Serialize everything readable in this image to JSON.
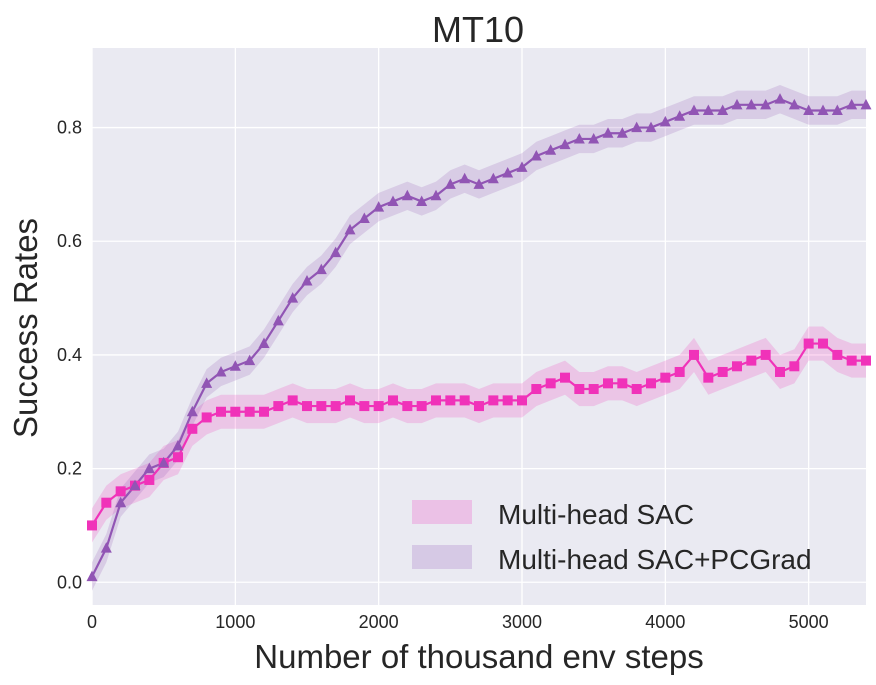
{
  "chart_data": {
    "type": "line",
    "title": "MT10",
    "xlabel": "Number of thousand env steps",
    "ylabel": "Success Rates",
    "xlim": [
      0,
      5400
    ],
    "ylim": [
      -0.04,
      0.94
    ],
    "xticks": [
      0,
      1000,
      2000,
      3000,
      4000,
      5000
    ],
    "yticks": [
      0.0,
      0.2,
      0.4,
      0.6,
      0.8
    ],
    "xtick_labels": [
      "0",
      "1000",
      "2000",
      "3000",
      "4000",
      "5000"
    ],
    "ytick_labels": [
      "0.0",
      "0.2",
      "0.4",
      "0.6",
      "0.8"
    ],
    "grid": true,
    "legend_position": "bottom-right",
    "colors": {
      "background": "#eaeaf2",
      "grid": "#ffffff",
      "sac": "#f032b9",
      "pcgrad": "#9155b4"
    },
    "series": [
      {
        "name": "Multi-head SAC",
        "marker": "square",
        "band": 0.03,
        "x": [
          0,
          100,
          200,
          300,
          400,
          500,
          600,
          700,
          800,
          900,
          1000,
          1100,
          1200,
          1300,
          1400,
          1500,
          1600,
          1700,
          1800,
          1900,
          2000,
          2100,
          2200,
          2300,
          2400,
          2500,
          2600,
          2700,
          2800,
          2900,
          3000,
          3100,
          3200,
          3300,
          3400,
          3500,
          3600,
          3700,
          3800,
          3900,
          4000,
          4100,
          4200,
          4300,
          4400,
          4500,
          4600,
          4700,
          4800,
          4900,
          5000,
          5100,
          5200,
          5300,
          5400
        ],
        "values": [
          0.1,
          0.14,
          0.16,
          0.17,
          0.18,
          0.21,
          0.22,
          0.27,
          0.29,
          0.3,
          0.3,
          0.3,
          0.3,
          0.31,
          0.32,
          0.31,
          0.31,
          0.31,
          0.32,
          0.31,
          0.31,
          0.32,
          0.31,
          0.31,
          0.32,
          0.32,
          0.32,
          0.31,
          0.32,
          0.32,
          0.32,
          0.34,
          0.35,
          0.36,
          0.34,
          0.34,
          0.35,
          0.35,
          0.34,
          0.35,
          0.36,
          0.37,
          0.4,
          0.36,
          0.37,
          0.38,
          0.39,
          0.4,
          0.37,
          0.38,
          0.42,
          0.42,
          0.4,
          0.39,
          0.39
        ]
      },
      {
        "name": "Multi-head SAC+PCGrad",
        "marker": "triangle",
        "band": 0.025,
        "x": [
          0,
          100,
          200,
          300,
          400,
          500,
          600,
          700,
          800,
          900,
          1000,
          1100,
          1200,
          1300,
          1400,
          1500,
          1600,
          1700,
          1800,
          1900,
          2000,
          2100,
          2200,
          2300,
          2400,
          2500,
          2600,
          2700,
          2800,
          2900,
          3000,
          3100,
          3200,
          3300,
          3400,
          3500,
          3600,
          3700,
          3800,
          3900,
          4000,
          4100,
          4200,
          4300,
          4400,
          4500,
          4600,
          4700,
          4800,
          4900,
          5000,
          5100,
          5200,
          5300,
          5400
        ],
        "values": [
          0.01,
          0.06,
          0.14,
          0.17,
          0.2,
          0.21,
          0.24,
          0.3,
          0.35,
          0.37,
          0.38,
          0.39,
          0.42,
          0.46,
          0.5,
          0.53,
          0.55,
          0.58,
          0.62,
          0.64,
          0.66,
          0.67,
          0.68,
          0.67,
          0.68,
          0.7,
          0.71,
          0.7,
          0.71,
          0.72,
          0.73,
          0.75,
          0.76,
          0.77,
          0.78,
          0.78,
          0.79,
          0.79,
          0.8,
          0.8,
          0.81,
          0.82,
          0.83,
          0.83,
          0.83,
          0.84,
          0.84,
          0.84,
          0.85,
          0.84,
          0.83,
          0.83,
          0.83,
          0.84,
          0.84
        ]
      }
    ]
  }
}
